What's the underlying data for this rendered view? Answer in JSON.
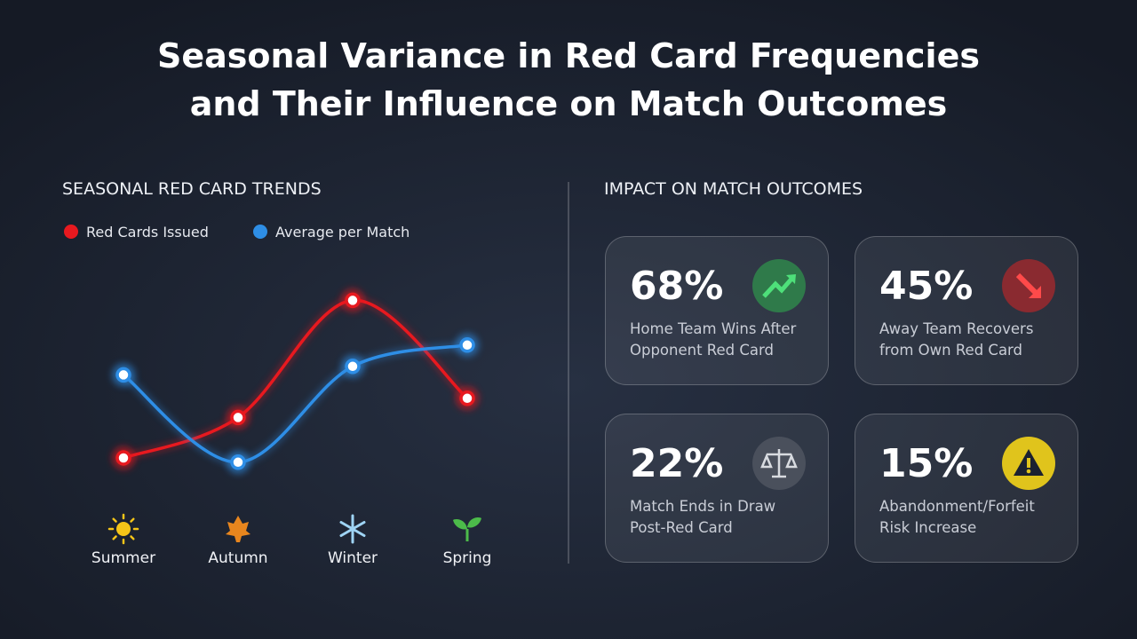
{
  "chart_data": {
    "type": "line",
    "title": "Seasonal Variance in Red Card Frequencies and Their Influence on Match Outcomes",
    "subtitle": "SEASONAL RED CARD TRENDS",
    "categories": [
      "Summer",
      "Autumn",
      "Winter",
      "Spring"
    ],
    "series": [
      {
        "name": "Red Cards Issued",
        "color": "#e8191f",
        "values": [
          1.0,
          2.9,
          8.4,
          3.8
        ]
      },
      {
        "name": "Average per Match",
        "color": "#2e8ee6",
        "values": [
          4.9,
          0.8,
          5.3,
          6.3
        ]
      }
    ],
    "ylim": [
      0,
      10
    ],
    "grid": false,
    "legend": "top"
  },
  "impact": {
    "title": "IMPACT ON MATCH OUTCOMES",
    "cards": [
      {
        "value": "68%",
        "label": "Home Team Wins After Opponent Red Card"
      },
      {
        "value": "45%",
        "label": "Away Team Recovers from Own Red Card"
      },
      {
        "value": "22%",
        "label": "Match Ends in Draw Post-Red Card"
      },
      {
        "value": "15%",
        "label": "Abandonment/Forfeit Risk Increase"
      }
    ]
  }
}
